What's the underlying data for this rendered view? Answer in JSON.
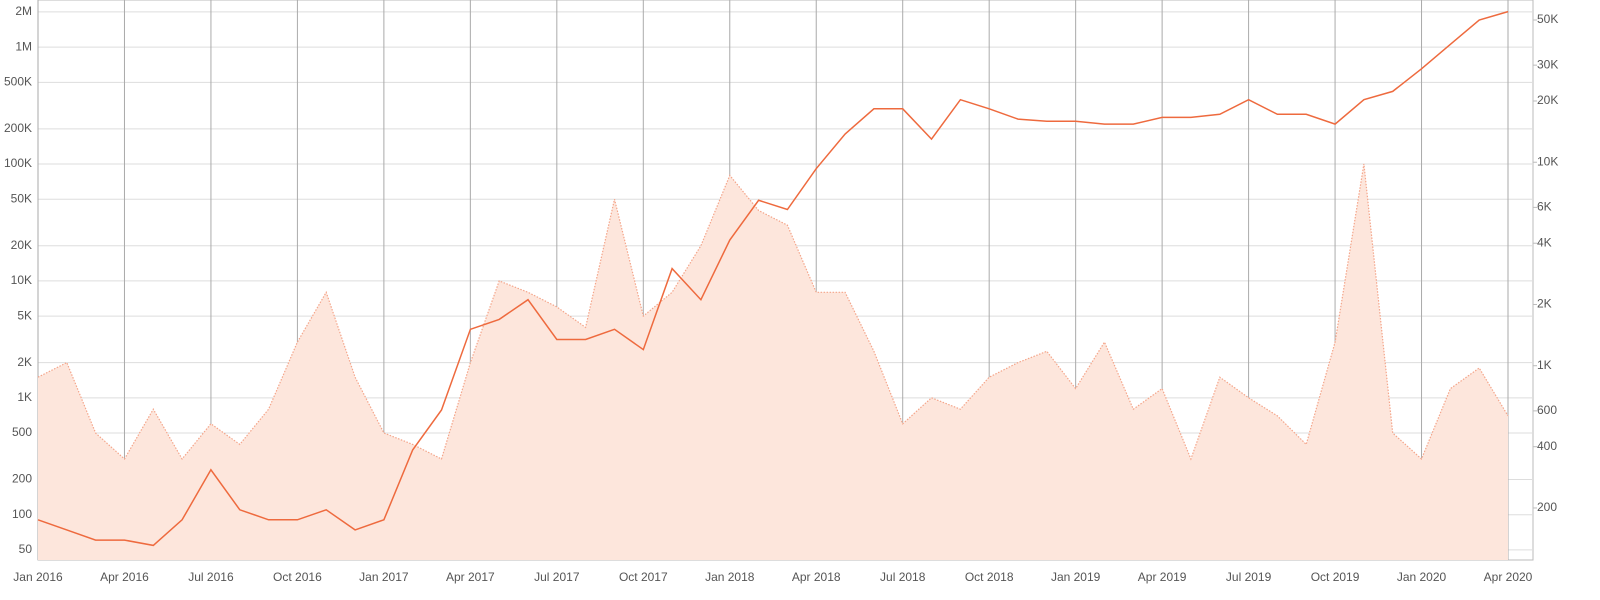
{
  "chart_data": {
    "type": "line",
    "categories": [
      "Jan 2016",
      null,
      null,
      "Apr 2016",
      null,
      null,
      "Jul 2016",
      null,
      null,
      "Oct 2016",
      null,
      null,
      "Jan 2017",
      null,
      null,
      "Apr 2017",
      null,
      null,
      "Jul 2017",
      null,
      null,
      "Oct 2017",
      null,
      null,
      "Jan 2018",
      null,
      null,
      "Apr 2018",
      null,
      null,
      "Jul 2018",
      null,
      null,
      "Oct 2018",
      null,
      null,
      "Jan 2019",
      null,
      null,
      "Apr 2019",
      null,
      null,
      "Jul 2019",
      null,
      null,
      "Oct 2019",
      null,
      null,
      "Jan 2020",
      null,
      null,
      "Apr 2020"
    ],
    "series": [
      {
        "color": "#f4a58a",
        "fill": "#fde6dc",
        "area": true,
        "dashed": true,
        "values": [
          1500,
          2000,
          500,
          300,
          800,
          300,
          600,
          400,
          800,
          3000,
          8000,
          1500,
          500,
          400,
          300,
          2000,
          10000,
          8000,
          6000,
          4000,
          50000,
          5000,
          8000,
          20000,
          80000,
          40000,
          30000,
          8000,
          8000,
          2500,
          600,
          1000,
          800,
          1500,
          2000,
          2500,
          1200,
          3000,
          800,
          1200,
          300,
          1500,
          1000,
          700,
          400,
          3000,
          100000,
          500,
          300,
          1200,
          1800,
          700
        ]
      },
      {
        "color": "#ee6a3e",
        "axis": "y2",
        "values": [
          175,
          156,
          139,
          139,
          131,
          175,
          308,
          196,
          175,
          175,
          196,
          156,
          175,
          386,
          606,
          1510,
          1690,
          2110,
          1345,
          1345,
          1510,
          1200,
          3000,
          2110,
          4150,
          6500,
          5860,
          9300,
          13760,
          18300,
          18300,
          13000,
          20300,
          18300,
          16300,
          15900,
          15900,
          15400,
          15400,
          16600,
          16600,
          17200,
          20300,
          17200,
          17200,
          15400,
          20300,
          22300,
          28800,
          38000,
          50000,
          55000
        ]
      }
    ],
    "log_scale": true,
    "grid": true,
    "ylim": [
      41,
      2530000
    ],
    "yticks": [
      50,
      100,
      200,
      500,
      {
        "value": 1000,
        "label": "1K"
      },
      {
        "value": 2000,
        "label": "2K"
      },
      {
        "value": 5000,
        "label": "5K"
      },
      {
        "value": 10000,
        "label": "10K"
      },
      {
        "value": 20000,
        "label": "20K"
      },
      {
        "value": 50000,
        "label": "50K"
      },
      {
        "value": 100000,
        "label": "100K"
      },
      {
        "value": 200000,
        "label": "200K"
      },
      {
        "value": 500000,
        "label": "500K"
      },
      {
        "value": 1000000,
        "label": "1M"
      },
      {
        "value": 2000000,
        "label": "2M"
      }
    ],
    "y2lim": [
      111,
      62700
    ],
    "y2ticks": [
      200,
      400,
      600,
      {
        "value": 1000,
        "label": "1K"
      },
      {
        "value": 2000,
        "label": "2K"
      },
      {
        "value": 4000,
        "label": "4K"
      },
      {
        "value": 6000,
        "label": "6K"
      },
      {
        "value": 10000,
        "label": "10K"
      },
      {
        "value": 20000,
        "label": "20K"
      },
      {
        "value": 30000,
        "label": "30K"
      },
      {
        "value": 50000,
        "label": "50K"
      }
    ]
  }
}
